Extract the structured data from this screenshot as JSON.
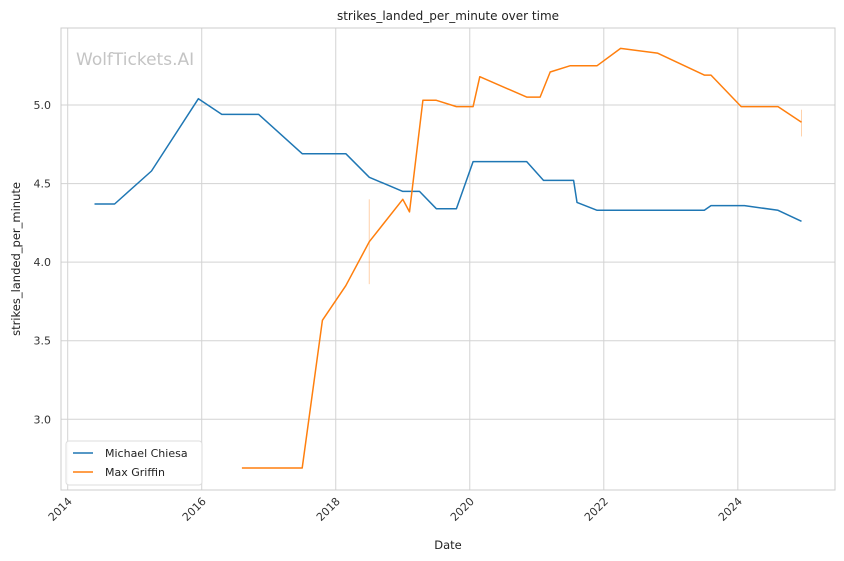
{
  "chart_data": {
    "type": "line",
    "title": "strikes_landed_per_minute over time",
    "xlabel": "Date",
    "ylabel": "strikes_landed_per_minute",
    "xlim": [
      2013.9,
      2025.45
    ],
    "ylim": [
      2.55,
      5.49
    ],
    "x_ticks": [
      2014,
      2016,
      2018,
      2020,
      2022,
      2024
    ],
    "y_ticks": [
      3.0,
      3.5,
      4.0,
      4.5,
      5.0
    ],
    "y_tick_labels": [
      "3.0",
      "3.5",
      "4.0",
      "4.5",
      "5.0"
    ],
    "grid": true,
    "legend_position": "lower-left",
    "watermark": "WolfTickets.AI",
    "series": [
      {
        "name": "Michael Chiesa",
        "color": "#1f77b4",
        "points": [
          [
            2014.4,
            4.37
          ],
          [
            2014.7,
            4.37
          ],
          [
            2015.25,
            4.58
          ],
          [
            2015.95,
            5.04
          ],
          [
            2016.3,
            4.94
          ],
          [
            2016.85,
            4.94
          ],
          [
            2017.5,
            4.69
          ],
          [
            2018.15,
            4.69
          ],
          [
            2018.5,
            4.54
          ],
          [
            2019.0,
            4.45
          ],
          [
            2019.25,
            4.45
          ],
          [
            2019.5,
            4.34
          ],
          [
            2019.8,
            4.34
          ],
          [
            2020.05,
            4.64
          ],
          [
            2020.85,
            4.64
          ],
          [
            2021.1,
            4.52
          ],
          [
            2021.55,
            4.52
          ],
          [
            2021.6,
            4.38
          ],
          [
            2021.9,
            4.33
          ],
          [
            2023.5,
            4.33
          ],
          [
            2023.6,
            4.36
          ],
          [
            2024.1,
            4.36
          ],
          [
            2024.6,
            4.33
          ],
          [
            2024.95,
            4.26
          ]
        ]
      },
      {
        "name": "Max Griffin",
        "color": "#ff7f0e",
        "points": [
          [
            2016.6,
            2.69
          ],
          [
            2017.5,
            2.69
          ],
          [
            2017.8,
            3.63
          ],
          [
            2018.15,
            3.85
          ],
          [
            2018.5,
            4.13
          ],
          [
            2019.0,
            4.4
          ],
          [
            2019.1,
            4.32
          ],
          [
            2019.3,
            5.03
          ],
          [
            2019.5,
            5.03
          ],
          [
            2019.8,
            4.99
          ],
          [
            2020.05,
            4.99
          ],
          [
            2020.15,
            5.18
          ],
          [
            2020.85,
            5.05
          ],
          [
            2021.05,
            5.05
          ],
          [
            2021.2,
            5.21
          ],
          [
            2021.5,
            5.25
          ],
          [
            2021.9,
            5.25
          ],
          [
            2022.25,
            5.36
          ],
          [
            2022.8,
            5.33
          ],
          [
            2023.5,
            5.19
          ],
          [
            2023.6,
            5.19
          ],
          [
            2024.05,
            4.99
          ],
          [
            2024.6,
            4.99
          ],
          [
            2024.95,
            4.89
          ]
        ],
        "error_bars": [
          {
            "x": 2018.5,
            "low": 3.86,
            "high": 4.4
          },
          {
            "x": 2024.95,
            "low": 4.8,
            "high": 4.97
          }
        ]
      }
    ]
  }
}
